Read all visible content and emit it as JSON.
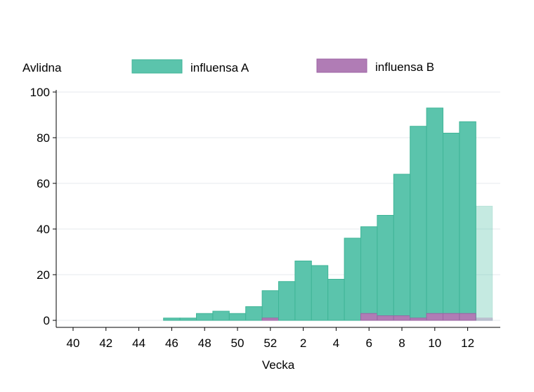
{
  "chart_data": {
    "type": "bar",
    "ylabel": "Avlidna",
    "xlabel": "Vecka",
    "ylim": [
      0,
      100
    ],
    "yticks": [
      0,
      20,
      40,
      60,
      80,
      100
    ],
    "grid": true,
    "legend_position": "top",
    "categories": [
      "40",
      "41",
      "42",
      "43",
      "44",
      "45",
      "46",
      "47",
      "48",
      "49",
      "50",
      "51",
      "52",
      "1",
      "2",
      "3",
      "4",
      "5",
      "6",
      "7",
      "8",
      "9",
      "10",
      "11",
      "12",
      "13"
    ],
    "xtick_labels": [
      "40",
      "42",
      "44",
      "46",
      "48",
      "50",
      "52",
      "2",
      "4",
      "6",
      "8",
      "10",
      "12"
    ],
    "series": [
      {
        "name": "influensa A",
        "color": "#5BC4AC",
        "values": [
          0,
          0,
          0,
          0,
          0,
          0,
          1,
          1,
          3,
          4,
          3,
          6,
          13,
          17,
          26,
          24,
          18,
          36,
          41,
          46,
          64,
          85,
          93,
          82,
          87,
          50
        ]
      },
      {
        "name": "influensa B",
        "color": "#B07CB5",
        "values": [
          0,
          0,
          0,
          0,
          0,
          0,
          0,
          0,
          0,
          0,
          0,
          0,
          1,
          0,
          0,
          0,
          0,
          0,
          3,
          2,
          2,
          1,
          3,
          3,
          3,
          1
        ]
      }
    ],
    "faded_categories": [
      "13"
    ]
  }
}
